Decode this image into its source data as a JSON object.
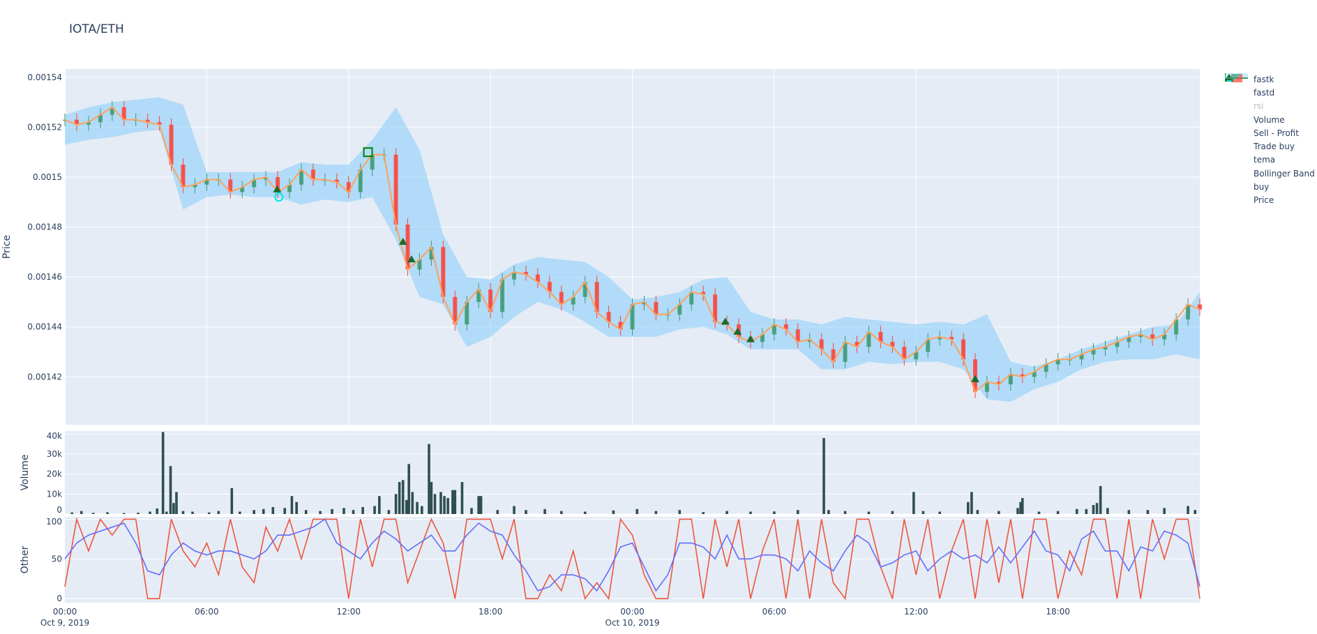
{
  "title": "IOTA/ETH",
  "colors": {
    "plot_bg": "#e5ecf6",
    "increasing": "#3D9970",
    "decreasing": "#FF4136",
    "tema": "#ffa15a",
    "bollinger": "rgba(135,206,250,0.55)",
    "volume": "#2f4f4f",
    "fastk": "#ef553b",
    "fastd": "#636efa",
    "rsi": "#ffe4a8",
    "buy": "#1a6b2e",
    "trade_buy": "#00e5ee",
    "sell_profit": "#008000"
  },
  "legend": {
    "items": [
      {
        "label": "fastk",
        "symbol": "line",
        "color": "#ef553b"
      },
      {
        "label": "fastd",
        "symbol": "line",
        "color": "#636efa"
      },
      {
        "label": "rsi",
        "symbol": "line",
        "color": "#ffe4a8",
        "hidden": true
      },
      {
        "label": "Volume",
        "symbol": "square",
        "color": "#2f4f4f"
      },
      {
        "label": "Sell - Profit",
        "symbol": "square-open",
        "color": "#008000"
      },
      {
        "label": "Trade buy",
        "symbol": "circle-open",
        "color": "#00e5ee"
      },
      {
        "label": "tema",
        "symbol": "line",
        "color": "#ffa15a"
      },
      {
        "label": "Bollinger Band",
        "symbol": "band",
        "color": "#cde9fa"
      },
      {
        "label": "buy",
        "symbol": "triangle",
        "color": "#1a6b2e"
      },
      {
        "label": "Price",
        "symbol": "candle",
        "color": "#3D9970"
      }
    ]
  },
  "chart_data": [
    {
      "type": "candlestick",
      "panel": "price",
      "ylabel": "Price",
      "ylim": [
        0.0014008,
        0.0015433
      ],
      "yticks": [
        "0.00142",
        "0.00144",
        "0.00146",
        "0.00148",
        "0.0015",
        "0.00152",
        "0.00154"
      ],
      "ytick_values": [
        0.00142,
        0.00144,
        0.00146,
        0.00148,
        0.0015,
        0.00152,
        0.00154
      ],
      "grid": true,
      "x_hours_range": [
        0,
        48
      ],
      "close_every_30min": [
        0.001523,
        0.001521,
        0.001522,
        0.001525,
        0.001528,
        0.001523,
        0.001523,
        0.001522,
        0.001521,
        0.001505,
        0.001496,
        0.001497,
        0.001499,
        0.001499,
        0.001494,
        0.001496,
        0.001499,
        0.0015,
        0.001494,
        0.001497,
        0.001503,
        0.001499,
        0.001499,
        0.001498,
        0.001494,
        0.001503,
        0.001509,
        0.001509,
        0.001481,
        0.001463,
        0.001467,
        0.001472,
        0.001452,
        0.001441,
        0.00145,
        0.001455,
        0.001446,
        0.001459,
        0.001462,
        0.001461,
        0.001458,
        0.001454,
        0.001449,
        0.001452,
        0.001458,
        0.001446,
        0.001442,
        0.001439,
        0.001449,
        0.00145,
        0.001445,
        0.001445,
        0.001449,
        0.001454,
        0.001453,
        0.001442,
        0.001441,
        0.001436,
        0.001434,
        0.001437,
        0.001441,
        0.001439,
        0.001434,
        0.001435,
        0.001431,
        0.001426,
        0.001434,
        0.001432,
        0.001438,
        0.001434,
        0.001432,
        0.001427,
        0.00143,
        0.001435,
        0.001436,
        0.001435,
        0.001427,
        0.001414,
        0.001418,
        0.001417,
        0.001421,
        0.00142,
        0.001422,
        0.001425,
        0.001427,
        0.001427,
        0.001429,
        0.001431,
        0.001432,
        0.001434,
        0.001436,
        0.001437,
        0.001435,
        0.001437,
        0.001443,
        0.001449,
        0.001447
      ],
      "tema_every_30min": [
        0.001523,
        0.001521,
        0.001522,
        0.001525,
        0.001528,
        0.001523,
        0.001523,
        0.001522,
        0.001521,
        0.001505,
        0.001496,
        0.001497,
        0.001499,
        0.001499,
        0.001494,
        0.001496,
        0.001499,
        0.0015,
        0.001494,
        0.001497,
        0.001503,
        0.001499,
        0.001499,
        0.001498,
        0.001494,
        0.001503,
        0.001509,
        0.001509,
        0.001481,
        0.001463,
        0.001467,
        0.001472,
        0.001452,
        0.001441,
        0.00145,
        0.001455,
        0.001446,
        0.001459,
        0.001462,
        0.001461,
        0.001458,
        0.001454,
        0.001449,
        0.001452,
        0.001458,
        0.001446,
        0.001442,
        0.001439,
        0.001449,
        0.00145,
        0.001445,
        0.001445,
        0.001449,
        0.001454,
        0.001453,
        0.001442,
        0.001441,
        0.001436,
        0.001434,
        0.001437,
        0.001441,
        0.001439,
        0.001434,
        0.001435,
        0.001431,
        0.001426,
        0.001434,
        0.001432,
        0.001438,
        0.001434,
        0.001432,
        0.001427,
        0.00143,
        0.001435,
        0.001436,
        0.001435,
        0.001427,
        0.001414,
        0.001418,
        0.001417,
        0.001421,
        0.00142,
        0.001422,
        0.001425,
        0.001427,
        0.001427,
        0.001429,
        0.001431,
        0.001432,
        0.001434,
        0.001436,
        0.001437,
        0.001435,
        0.001437,
        0.001443,
        0.001449,
        0.001447
      ],
      "bollinger_upper_hourly": [
        0.001525,
        0.001528,
        0.00153,
        0.001531,
        0.001532,
        0.001529,
        0.001502,
        0.001502,
        0.001502,
        0.001502,
        0.001506,
        0.001505,
        0.001505,
        0.001515,
        0.001528,
        0.001511,
        0.001477,
        0.00146,
        0.001459,
        0.001465,
        0.001468,
        0.001467,
        0.001466,
        0.00146,
        0.001451,
        0.001452,
        0.001454,
        0.001459,
        0.00146,
        0.001446,
        0.001443,
        0.001443,
        0.001441,
        0.001444,
        0.001443,
        0.001442,
        0.001441,
        0.001442,
        0.001441,
        0.001445,
        0.001426,
        0.001424,
        0.001427,
        0.001431,
        0.001434,
        0.001437,
        0.00144,
        0.001441,
        0.001454
      ],
      "bollinger_lower_hourly": [
        0.001513,
        0.001515,
        0.001516,
        0.001518,
        0.001519,
        0.001487,
        0.001492,
        0.001493,
        0.001492,
        0.001492,
        0.001489,
        0.001491,
        0.00149,
        0.001492,
        0.001475,
        0.001452,
        0.001449,
        0.001432,
        0.001436,
        0.001444,
        0.00145,
        0.001447,
        0.001442,
        0.001436,
        0.001436,
        0.001436,
        0.001439,
        0.00144,
        0.001437,
        0.001431,
        0.001431,
        0.001431,
        0.001423,
        0.001423,
        0.001426,
        0.001425,
        0.001426,
        0.001426,
        0.001423,
        0.001411,
        0.00141,
        0.001415,
        0.001418,
        0.001423,
        0.001426,
        0.001427,
        0.001427,
        0.001429,
        0.001427
      ],
      "buy_markers": [
        [
          8.98,
          0.001495
        ],
        [
          14.3,
          0.001474
        ],
        [
          14.66,
          0.001467
        ],
        [
          27.93,
          0.001442
        ],
        [
          28.45,
          0.001438
        ],
        [
          29.0,
          0.001435
        ],
        [
          38.5,
          0.001419
        ]
      ],
      "trade_buy_markers": [
        [
          9.05,
          0.001492
        ]
      ],
      "sell_profit_markers": [
        [
          12.82,
          0.00151
        ]
      ]
    },
    {
      "type": "bar",
      "panel": "volume",
      "ylabel": "Volume",
      "ylim": [
        0,
        41500
      ],
      "yticks": [
        "0",
        "10k",
        "20k",
        "30k",
        "40k"
      ],
      "ytick_values": [
        0,
        10000,
        20000,
        30000,
        40000
      ],
      "points_hours_volume": [
        [
          0.3,
          800
        ],
        [
          0.7,
          1500
        ],
        [
          1.2,
          600
        ],
        [
          1.8,
          900
        ],
        [
          2.5,
          500
        ],
        [
          3.1,
          700
        ],
        [
          3.6,
          1200
        ],
        [
          3.9,
          2800
        ],
        [
          4.15,
          41000
        ],
        [
          4.3,
          1200
        ],
        [
          4.47,
          24000
        ],
        [
          4.6,
          5500
        ],
        [
          4.72,
          11000
        ],
        [
          5.0,
          1500
        ],
        [
          5.4,
          1200
        ],
        [
          6.1,
          800
        ],
        [
          6.5,
          1500
        ],
        [
          7.06,
          13000
        ],
        [
          7.4,
          1200
        ],
        [
          8.0,
          2000
        ],
        [
          8.4,
          2500
        ],
        [
          8.8,
          3500
        ],
        [
          9.3,
          3000
        ],
        [
          9.6,
          9000
        ],
        [
          9.8,
          6000
        ],
        [
          10.2,
          2000
        ],
        [
          10.8,
          1500
        ],
        [
          11.3,
          2500
        ],
        [
          11.8,
          3000
        ],
        [
          12.2,
          2000
        ],
        [
          12.6,
          3500
        ],
        [
          13.1,
          4000
        ],
        [
          13.3,
          9000
        ],
        [
          13.7,
          2000
        ],
        [
          14.0,
          10000
        ],
        [
          14.15,
          16000
        ],
        [
          14.3,
          17000
        ],
        [
          14.45,
          7000
        ],
        [
          14.55,
          25000
        ],
        [
          14.7,
          11000
        ],
        [
          14.9,
          6000
        ],
        [
          15.1,
          4000
        ],
        [
          15.4,
          35000
        ],
        [
          15.5,
          16000
        ],
        [
          15.65,
          10000
        ],
        [
          15.9,
          11000
        ],
        [
          16.05,
          9000
        ],
        [
          16.2,
          8000
        ],
        [
          16.4,
          12000
        ],
        [
          16.5,
          12000
        ],
        [
          16.8,
          16000
        ],
        [
          17.2,
          3000
        ],
        [
          17.5,
          9000
        ],
        [
          17.6,
          9000
        ],
        [
          18.3,
          2000
        ],
        [
          19.0,
          4000
        ],
        [
          19.5,
          2000
        ],
        [
          20.3,
          2500
        ],
        [
          21.0,
          1500
        ],
        [
          22.0,
          1200
        ],
        [
          23.2,
          1800
        ],
        [
          24.2,
          2500
        ],
        [
          25.0,
          1500
        ],
        [
          26.0,
          2000
        ],
        [
          27.0,
          1000
        ],
        [
          28.0,
          1500
        ],
        [
          29.0,
          1200
        ],
        [
          30.0,
          1300
        ],
        [
          31.0,
          2000
        ],
        [
          32.1,
          38000
        ],
        [
          32.3,
          2000
        ],
        [
          33.0,
          1500
        ],
        [
          34.0,
          1200
        ],
        [
          35.0,
          1500
        ],
        [
          35.9,
          11000
        ],
        [
          36.3,
          1500
        ],
        [
          37.0,
          1200
        ],
        [
          38.2,
          6000
        ],
        [
          38.35,
          11000
        ],
        [
          38.6,
          2000
        ],
        [
          39.5,
          1500
        ],
        [
          40.3,
          3000
        ],
        [
          40.42,
          6000
        ],
        [
          40.5,
          8000
        ],
        [
          41.2,
          1200
        ],
        [
          42.0,
          1500
        ],
        [
          42.8,
          2500
        ],
        [
          43.2,
          2500
        ],
        [
          43.5,
          4500
        ],
        [
          43.65,
          5500
        ],
        [
          43.8,
          14000
        ],
        [
          44.1,
          3000
        ],
        [
          45.0,
          2000
        ],
        [
          45.8,
          2000
        ],
        [
          46.5,
          3000
        ],
        [
          47.5,
          4000
        ],
        [
          47.8,
          2000
        ]
      ]
    },
    {
      "type": "line",
      "panel": "other",
      "ylabel": "Other",
      "ylim": [
        -5,
        103
      ],
      "yticks": [
        "0",
        "50",
        "100"
      ],
      "ytick_values": [
        0,
        50,
        100
      ],
      "series": [
        {
          "name": "fastk",
          "values": [
            15,
            100,
            60,
            100,
            80,
            100,
            100,
            0,
            0,
            100,
            60,
            40,
            70,
            30,
            100,
            40,
            20,
            90,
            60,
            100,
            50,
            100,
            100,
            100,
            0,
            100,
            40,
            100,
            100,
            20,
            60,
            100,
            70,
            0,
            100,
            100,
            100,
            50,
            100,
            0,
            0,
            30,
            10,
            60,
            0,
            20,
            0,
            100,
            80,
            30,
            0,
            0,
            100,
            100,
            0,
            100,
            40,
            100,
            0,
            60,
            100,
            0,
            100,
            0,
            100,
            20,
            0,
            100,
            100,
            40,
            0,
            100,
            30,
            100,
            0,
            60,
            100,
            0,
            100,
            20,
            100,
            0,
            100,
            100,
            0,
            60,
            30,
            100,
            100,
            0,
            100,
            0,
            100,
            50,
            100,
            100,
            0
          ]
        },
        {
          "name": "fastd",
          "values": [
            50,
            70,
            80,
            85,
            90,
            95,
            70,
            35,
            30,
            55,
            70,
            60,
            55,
            60,
            60,
            55,
            50,
            60,
            80,
            80,
            85,
            90,
            100,
            70,
            60,
            50,
            70,
            85,
            75,
            60,
            70,
            80,
            60,
            60,
            80,
            95,
            85,
            80,
            55,
            35,
            10,
            15,
            30,
            30,
            25,
            10,
            35,
            65,
            70,
            40,
            10,
            30,
            70,
            70,
            65,
            50,
            80,
            50,
            50,
            55,
            55,
            50,
            35,
            60,
            45,
            35,
            60,
            80,
            70,
            40,
            45,
            55,
            60,
            35,
            50,
            60,
            50,
            55,
            45,
            65,
            45,
            65,
            85,
            60,
            55,
            35,
            75,
            85,
            60,
            60,
            35,
            65,
            60,
            85,
            80,
            70,
            15
          ]
        }
      ]
    }
  ],
  "xaxis": {
    "ticks": [
      {
        "hour": 0,
        "label": "00:00",
        "sub": "Oct 9, 2019"
      },
      {
        "hour": 6,
        "label": "06:00",
        "sub": ""
      },
      {
        "hour": 12,
        "label": "12:00",
        "sub": ""
      },
      {
        "hour": 18,
        "label": "18:00",
        "sub": ""
      },
      {
        "hour": 24,
        "label": "00:00",
        "sub": "Oct 10, 2019"
      },
      {
        "hour": 30,
        "label": "06:00",
        "sub": ""
      },
      {
        "hour": 36,
        "label": "12:00",
        "sub": ""
      },
      {
        "hour": 42,
        "label": "18:00",
        "sub": ""
      }
    ]
  }
}
